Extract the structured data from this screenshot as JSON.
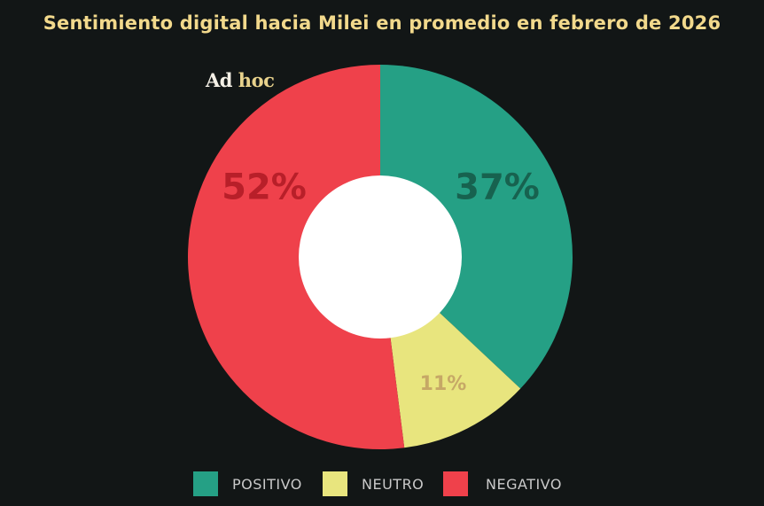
{
  "chart_data": {
    "type": "pie",
    "donut": true,
    "title": "Sentimiento digital hacia Milei en promedio en febrero de 2026",
    "categories": [
      "POSITIVO",
      "NEUTRO",
      "NEGATIVO"
    ],
    "values": [
      37,
      11,
      52
    ],
    "labels": [
      "37%",
      "11%",
      "52%"
    ],
    "colors": [
      "#25a085",
      "#e8e57e",
      "#ef414b"
    ],
    "label_colors": [
      "#17624f",
      "#c6a866",
      "#b81f29"
    ],
    "legend_position": "bottom"
  },
  "logo": {
    "part1": "Ad",
    "part2": "hoc"
  }
}
